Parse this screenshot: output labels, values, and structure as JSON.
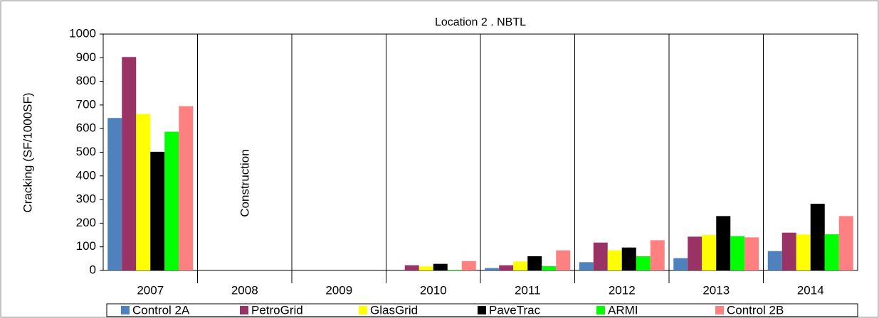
{
  "chart_data": {
    "type": "bar",
    "title": "Location 2 . NBTL",
    "y_label": "Cracking (SF/1000SF)",
    "annotation": "Construction",
    "categories": [
      "2007",
      "2008",
      "2009",
      "2010",
      "2011",
      "2012",
      "2013",
      "2014"
    ],
    "series": [
      {
        "name": "Control 2A",
        "color": "#4f81bd",
        "values": [
          645,
          0,
          0,
          0,
          10,
          35,
          52,
          82
        ]
      },
      {
        "name": "PetroGrid",
        "color": "#993366",
        "values": [
          903,
          0,
          0,
          22,
          22,
          118,
          143,
          160
        ]
      },
      {
        "name": "GlasGrid",
        "color": "#ffff00",
        "values": [
          662,
          0,
          0,
          17,
          38,
          85,
          150,
          152
        ]
      },
      {
        "name": "PaveTrac",
        "color": "#000000",
        "values": [
          502,
          0,
          0,
          28,
          60,
          97,
          230,
          282
        ]
      },
      {
        "name": "ARMI",
        "color": "#00ff00",
        "values": [
          587,
          0,
          0,
          2,
          18,
          60,
          145,
          153
        ]
      },
      {
        "name": "Control 2B",
        "color": "#ff8080",
        "values": [
          695,
          0,
          0,
          40,
          85,
          128,
          140,
          230
        ]
      }
    ],
    "ylim": [
      0,
      1000
    ],
    "yticks": [
      0,
      100,
      200,
      300,
      400,
      500,
      600,
      700,
      800,
      900,
      1000
    ],
    "grid": false,
    "category_dividers": true,
    "legend": "bottom"
  }
}
